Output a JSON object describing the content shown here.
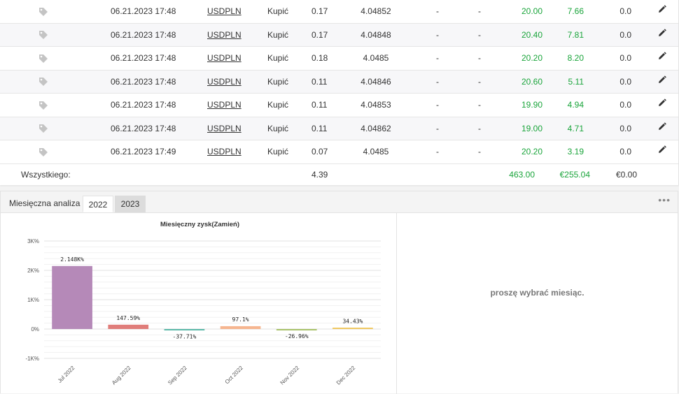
{
  "trades": {
    "rows": [
      {
        "date": "06.21.2023 17:48",
        "symbol": "USDPLN",
        "action": "Kupić",
        "lots": "0.17",
        "price": "4.04852",
        "sl": "-",
        "tp": "-",
        "pips": "20.00",
        "profit": "7.66",
        "swap": "0.0"
      },
      {
        "date": "06.21.2023 17:48",
        "symbol": "USDPLN",
        "action": "Kupić",
        "lots": "0.17",
        "price": "4.04848",
        "sl": "-",
        "tp": "-",
        "pips": "20.40",
        "profit": "7.81",
        "swap": "0.0"
      },
      {
        "date": "06.21.2023 17:48",
        "symbol": "USDPLN",
        "action": "Kupić",
        "lots": "0.18",
        "price": "4.0485",
        "sl": "-",
        "tp": "-",
        "pips": "20.20",
        "profit": "8.20",
        "swap": "0.0"
      },
      {
        "date": "06.21.2023 17:48",
        "symbol": "USDPLN",
        "action": "Kupić",
        "lots": "0.11",
        "price": "4.04846",
        "sl": "-",
        "tp": "-",
        "pips": "20.60",
        "profit": "5.11",
        "swap": "0.0"
      },
      {
        "date": "06.21.2023 17:48",
        "symbol": "USDPLN",
        "action": "Kupić",
        "lots": "0.11",
        "price": "4.04853",
        "sl": "-",
        "tp": "-",
        "pips": "19.90",
        "profit": "4.94",
        "swap": "0.0"
      },
      {
        "date": "06.21.2023 17:48",
        "symbol": "USDPLN",
        "action": "Kupić",
        "lots": "0.11",
        "price": "4.04862",
        "sl": "-",
        "tp": "-",
        "pips": "19.00",
        "profit": "4.71",
        "swap": "0.0"
      },
      {
        "date": "06.21.2023 17:49",
        "symbol": "USDPLN",
        "action": "Kupić",
        "lots": "0.07",
        "price": "4.0485",
        "sl": "-",
        "tp": "-",
        "pips": "20.20",
        "profit": "3.19",
        "swap": "0.0"
      }
    ],
    "total": {
      "label": "Wszystkiego:",
      "lots": "4.39",
      "pips": "463.00",
      "profit": "€255.04",
      "commission": "€0.00"
    },
    "icons": {
      "tag": "tag-icon",
      "edit": "pencil-icon"
    },
    "colors": {
      "positive": "#19a43a"
    }
  },
  "monthly": {
    "title": "Miesięczna analiza",
    "tabs": [
      {
        "label": "2022",
        "active": true
      },
      {
        "label": "2023",
        "active": false
      }
    ],
    "menu": "•••",
    "message": "proszę wybrać miesiąc."
  },
  "chart_data": {
    "type": "bar",
    "title": "Miesięczny zysk(Zamień)",
    "categories": [
      "Jul 2022",
      "Aug 2022",
      "Sep 2022",
      "Oct 2022",
      "Nov 2022",
      "Dec 2022"
    ],
    "values": [
      2148,
      147.59,
      -37.71,
      97.1,
      -26.96,
      34.43
    ],
    "value_labels": [
      "2.148K%",
      "147.59%",
      "-37.71%",
      "97.1%",
      "-26.96%",
      "34.43%"
    ],
    "colors": [
      "#b589b8",
      "#e07d7a",
      "#5bb8a8",
      "#f6b58f",
      "#a8c26a",
      "#f0c860"
    ],
    "ylim": [
      -1000,
      3000
    ],
    "yticks": [
      {
        "v": 3000,
        "label": "3K%"
      },
      {
        "v": 2000,
        "label": "2K%"
      },
      {
        "v": 1000,
        "label": "1K%"
      },
      {
        "v": 0,
        "label": "0%"
      },
      {
        "v": -1000,
        "label": "-1K%"
      }
    ],
    "xlabel": "",
    "ylabel": "",
    "grid": true
  }
}
